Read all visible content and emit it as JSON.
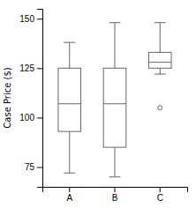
{
  "chart_data": {
    "type": "box",
    "ylabel": "Case Price ($)",
    "categories": [
      "A",
      "B",
      "C"
    ],
    "boxes": [
      {
        "whislo": 72,
        "q1": 93,
        "med": 107,
        "q3": 125,
        "whishi": 138,
        "fliers": []
      },
      {
        "whislo": 70,
        "q1": 85,
        "med": 107,
        "q3": 125,
        "whishi": 148,
        "fliers": []
      },
      {
        "whislo": 122,
        "q1": 125,
        "med": 128,
        "q3": 133,
        "whishi": 148,
        "fliers": [
          105
        ]
      }
    ],
    "ylim": [
      65,
      155
    ],
    "yticks": [
      75,
      100,
      125,
      150
    ],
    "color": "#666666"
  }
}
